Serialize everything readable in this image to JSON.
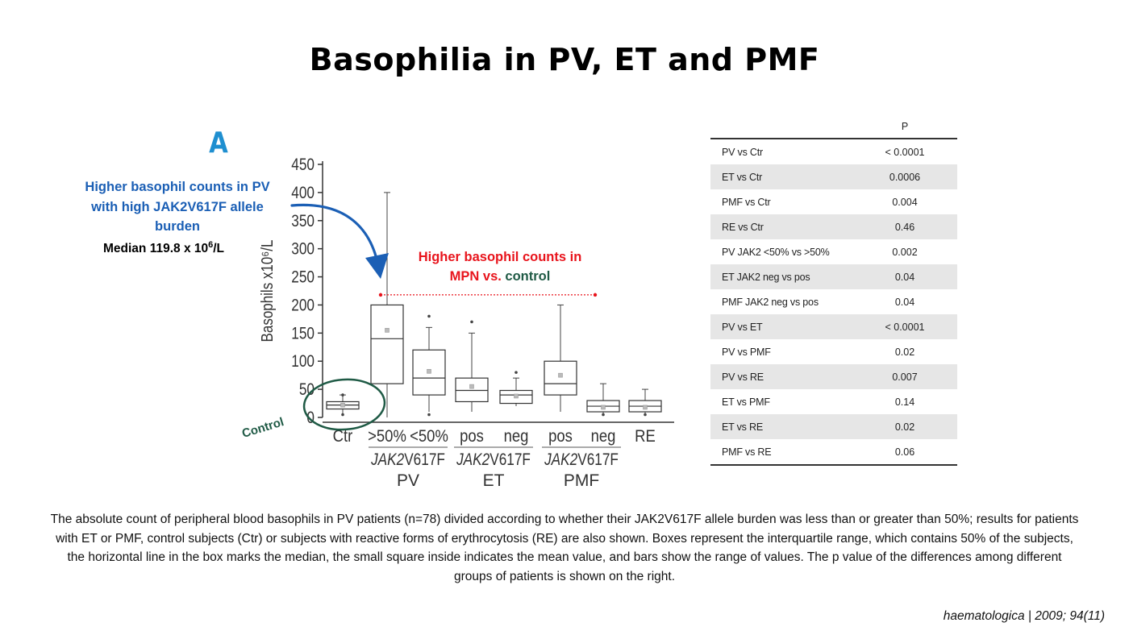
{
  "title": "Basophilia in PV, ET and PMF",
  "panel_letter": "A",
  "annotations": {
    "blue_text": "Higher basophil counts in PV with high JAK2V617F allele burden",
    "median_prefix": "Median 119.8  x 10",
    "median_sup": "6",
    "median_suffix": "/L",
    "red_text_line1": "Higher basophil counts in",
    "red_text_prefix": "MPN vs.",
    "red_text_green": "control",
    "control_label": "Control"
  },
  "chart_data": {
    "type": "boxplot",
    "ylabel": "Basophils x10⁶/L",
    "ylim": [
      0,
      450
    ],
    "yticks": [
      0,
      50,
      100,
      150,
      200,
      250,
      300,
      350,
      400,
      450
    ],
    "categories": [
      "Ctr",
      ">50%",
      "<50%",
      "pos",
      "neg",
      "pos",
      "neg",
      "RE"
    ],
    "groups": [
      {
        "italic": "JAK2",
        "rest": "V617F",
        "name": "PV"
      },
      {
        "italic": "JAK2",
        "rest": "V617F",
        "name": "ET"
      },
      {
        "italic": "JAK2",
        "rest": "V617F",
        "name": "PMF"
      }
    ],
    "boxes": [
      {
        "label": "Ctr",
        "min": 5,
        "q1": 15,
        "median": 22,
        "q3": 28,
        "max": 40,
        "mean": 22,
        "outliers": [
          5,
          40
        ]
      },
      {
        "label": ">50%",
        "min": 0,
        "q1": 60,
        "median": 140,
        "q3": 200,
        "max": 400,
        "mean": 155,
        "outliers": []
      },
      {
        "label": "<50%",
        "min": 10,
        "q1": 40,
        "median": 70,
        "q3": 120,
        "max": 160,
        "mean": 82,
        "outliers": [
          5,
          180
        ]
      },
      {
        "label": "pos",
        "min": 10,
        "q1": 28,
        "median": 48,
        "q3": 70,
        "max": 150,
        "mean": 55,
        "outliers": [
          170
        ]
      },
      {
        "label": "neg",
        "min": 20,
        "q1": 25,
        "median": 40,
        "q3": 48,
        "max": 70,
        "mean": 38,
        "outliers": [
          80
        ]
      },
      {
        "label": "pos",
        "min": 10,
        "q1": 40,
        "median": 60,
        "q3": 100,
        "max": 200,
        "mean": 75,
        "outliers": []
      },
      {
        "label": "neg",
        "min": 5,
        "q1": 10,
        "median": 20,
        "q3": 30,
        "max": 60,
        "mean": 18,
        "outliers": [
          5
        ]
      },
      {
        "label": "RE",
        "min": 5,
        "q1": 10,
        "median": 20,
        "q3": 30,
        "max": 50,
        "mean": 18,
        "outliers": [
          5
        ]
      }
    ],
    "reference_line_value": 218
  },
  "ptable": {
    "header": "P",
    "rows": [
      {
        "comparison": "PV vs Ctr",
        "p": "< 0.0001"
      },
      {
        "comparison": "ET vs Ctr",
        "p": "0.0006"
      },
      {
        "comparison": "PMF vs Ctr",
        "p": "0.004"
      },
      {
        "comparison": "RE vs Ctr",
        "p": "0.46"
      },
      {
        "comparison": "PV JAK2 <50% vs >50%",
        "p": "0.002"
      },
      {
        "comparison": "ET JAK2 neg vs pos",
        "p": "0.04"
      },
      {
        "comparison": "PMF JAK2 neg vs pos",
        "p": "0.04"
      },
      {
        "comparison": "PV vs ET",
        "p": "< 0.0001"
      },
      {
        "comparison": "PV vs PMF",
        "p": "0.02"
      },
      {
        "comparison": "PV vs RE",
        "p": "0.007"
      },
      {
        "comparison": "ET vs PMF",
        "p": "0.14"
      },
      {
        "comparison": "ET vs RE",
        "p": "0.02"
      },
      {
        "comparison": "PMF vs RE",
        "p": "0.06"
      }
    ]
  },
  "caption": "The absolute count of peripheral blood basophils in PV patients (n=78) divided according to whether their JAK2V617F allele burden was less than or greater than 50%; results for patients with ET or PMF, control subjects (Ctr) or subjects with reactive forms of erythrocytosis (RE) are also shown. Boxes represent the interquartile range, which contains 50% of the  subjects, the horizontal line in the box marks the median, the small square inside indicates the mean value, and bars show the range of values. The p value of the differences among  different groups of patients is shown on the right.",
  "citation": "haematologica | 2009; 94(11)",
  "colors": {
    "blue": "#1b5fb5",
    "red": "#e8141c",
    "green": "#1f5a45",
    "accent_letter": "#1f8fd0",
    "shade": "#e6e6e6"
  }
}
